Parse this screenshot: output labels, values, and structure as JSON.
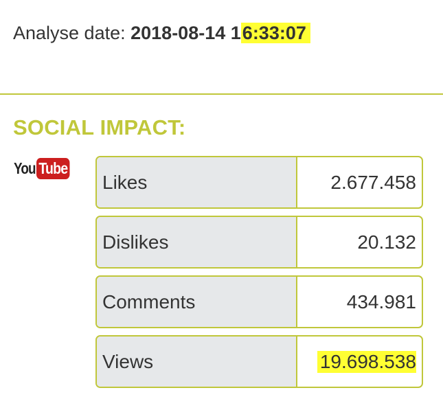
{
  "analyse": {
    "label": "Analyse date:",
    "date": "2018-08-14",
    "time_prefix": "1",
    "time_highlighted": "6:33:07"
  },
  "section": {
    "title": "SOCIAL IMPACT:"
  },
  "logo": {
    "you": "You",
    "tube": "Tube",
    "icon": "youtube-logo",
    "brand_color": "#cc1f1f"
  },
  "stats": [
    {
      "label": "Likes",
      "value": "2.677.458"
    },
    {
      "label": "Dislikes",
      "value": "20.132"
    },
    {
      "label": "Comments",
      "value": "434.981"
    },
    {
      "label": "Views",
      "value": "19.698.538"
    }
  ],
  "colors": {
    "accent": "#c0c73a",
    "highlight": "#ffff33",
    "label_cell": "#e6e8ea",
    "text": "#333333"
  }
}
